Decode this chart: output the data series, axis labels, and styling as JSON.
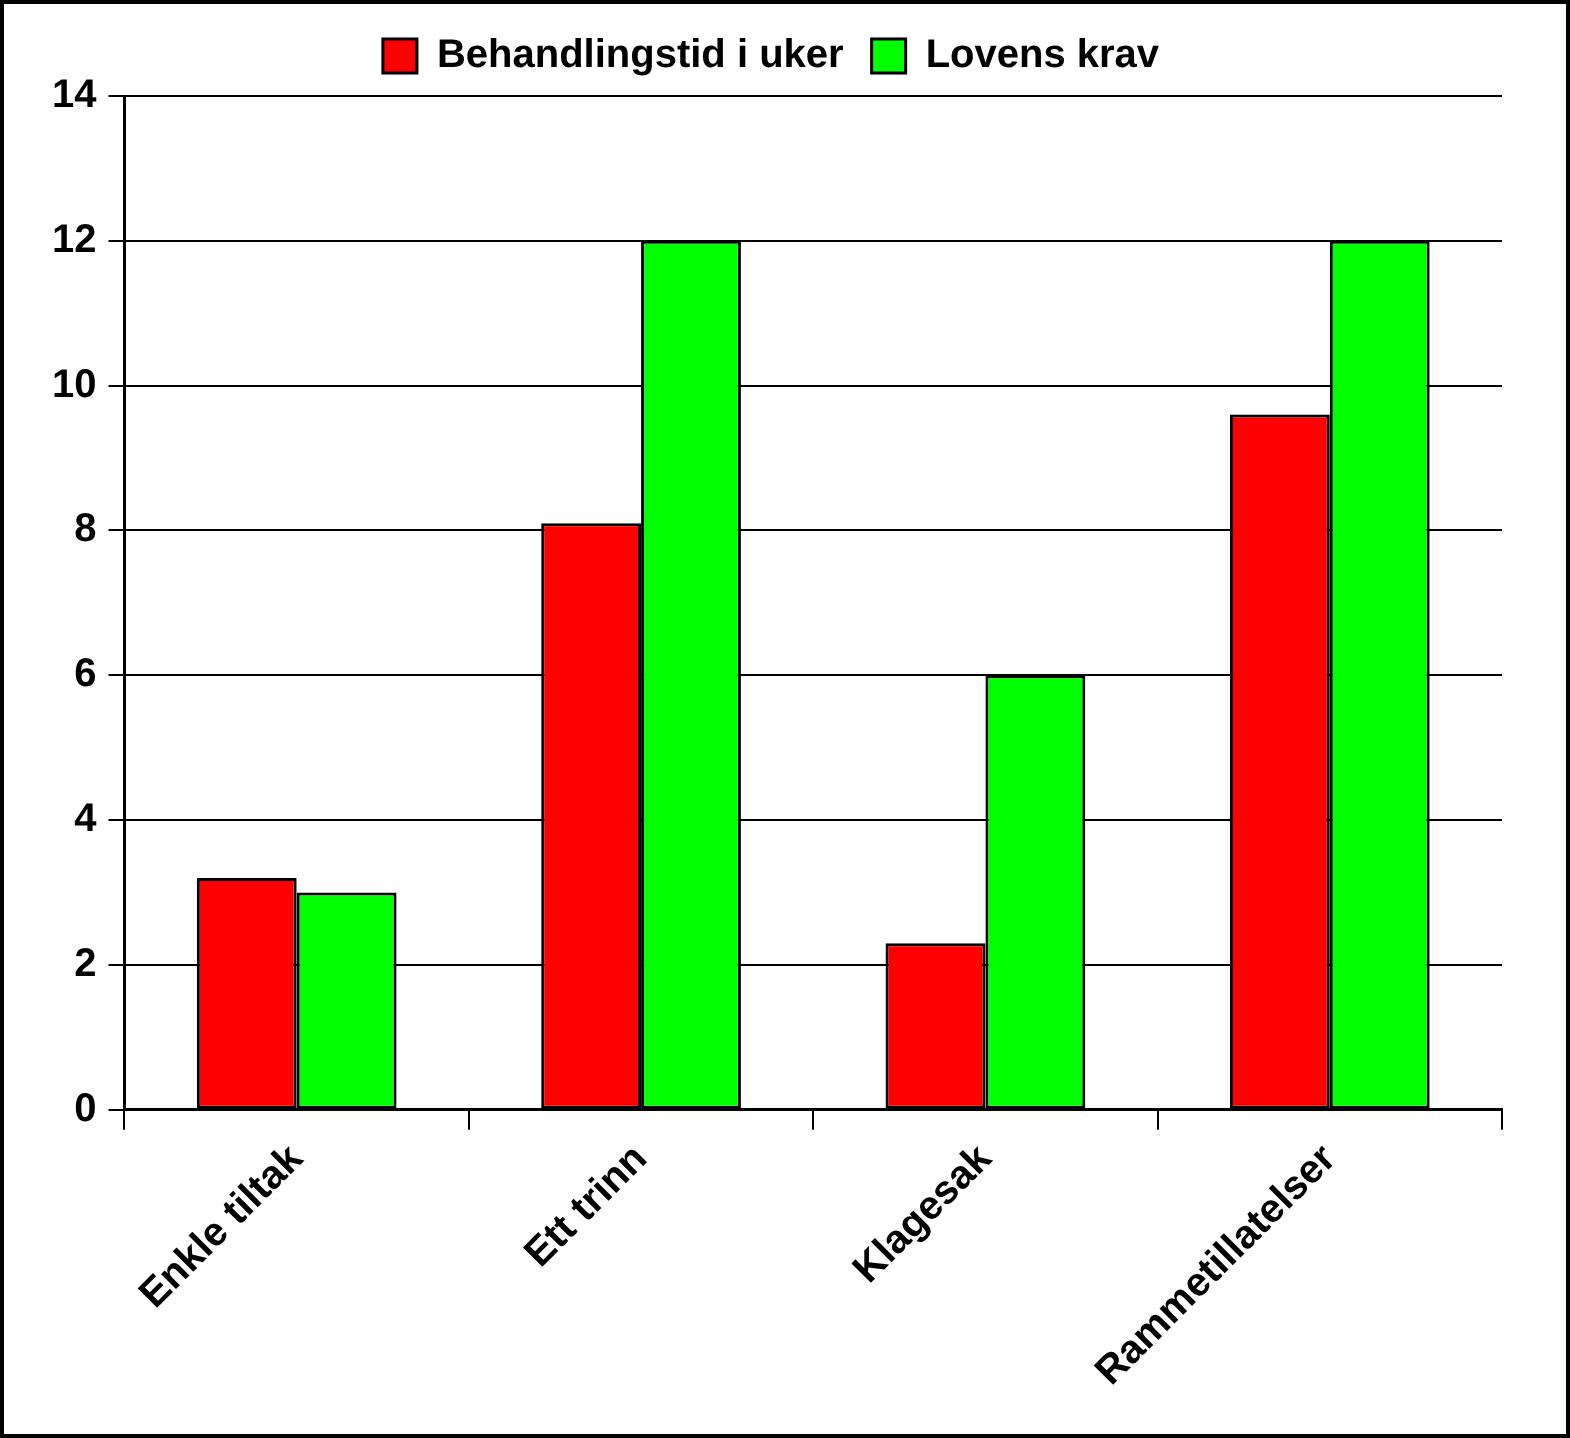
{
  "chart_data": {
    "type": "bar",
    "categories": [
      "Enkle tiltak",
      "Ett trinn",
      "Klagesak",
      "Rammetillatelser"
    ],
    "series": [
      {
        "name": "Behandlingstid i uker",
        "color": "#ff0000",
        "values": [
          3.2,
          8.1,
          2.3,
          9.6
        ]
      },
      {
        "name": "Lovens krav",
        "color": "#00ff00",
        "values": [
          3.0,
          12,
          6,
          12
        ]
      }
    ],
    "ylim": [
      0,
      14
    ],
    "yticks": [
      0,
      2,
      4,
      6,
      8,
      10,
      12,
      14
    ],
    "grid": "y",
    "legend": "top"
  }
}
